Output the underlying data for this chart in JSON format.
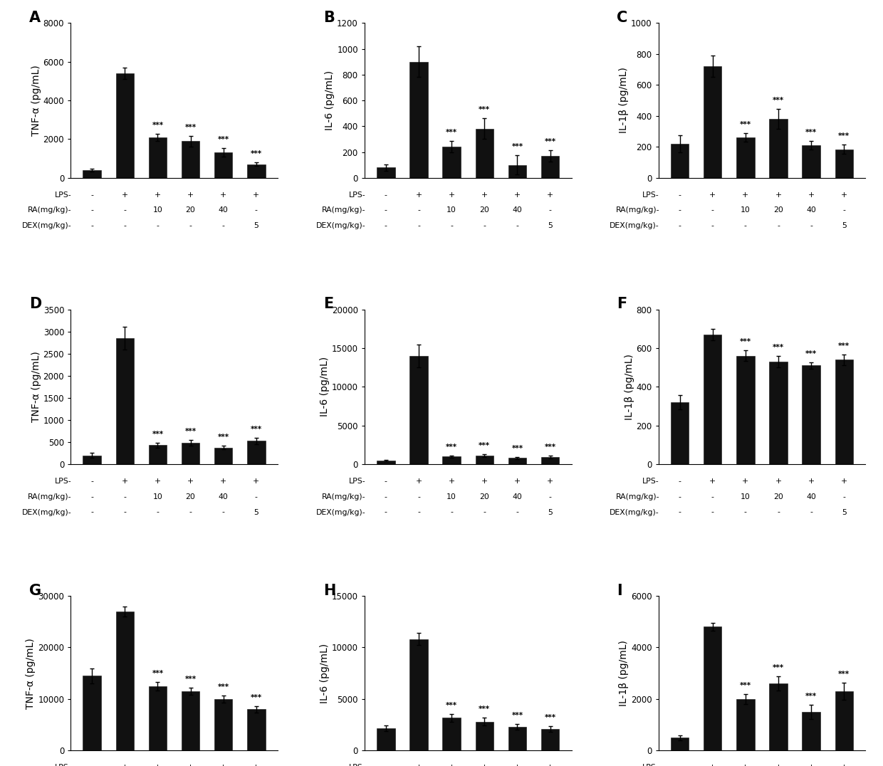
{
  "panels": [
    {
      "label": "A",
      "ylabel": "TNF-α (pg/mL)",
      "ylim": [
        0,
        8000
      ],
      "yticks": [
        0,
        2000,
        4000,
        6000,
        8000
      ],
      "values": [
        400,
        5400,
        2100,
        1900,
        1300,
        700
      ],
      "errors": [
        80,
        280,
        180,
        280,
        220,
        100
      ],
      "sig": [
        false,
        false,
        true,
        true,
        true,
        true
      ]
    },
    {
      "label": "B",
      "ylabel": "IL-6 (pg/mL)",
      "ylim": [
        0,
        1200
      ],
      "yticks": [
        0,
        200,
        400,
        600,
        800,
        1000,
        1200
      ],
      "values": [
        80,
        900,
        240,
        380,
        100,
        170
      ],
      "errors": [
        25,
        120,
        45,
        80,
        75,
        45
      ],
      "sig": [
        false,
        false,
        true,
        true,
        true,
        true
      ]
    },
    {
      "label": "C",
      "ylabel": "IL-1β (pg/mL)",
      "ylim": [
        0,
        1000
      ],
      "yticks": [
        0,
        200,
        400,
        600,
        800,
        1000
      ],
      "values": [
        220,
        720,
        260,
        380,
        210,
        185
      ],
      "errors": [
        55,
        70,
        28,
        65,
        28,
        28
      ],
      "sig": [
        false,
        false,
        true,
        true,
        true,
        true
      ]
    },
    {
      "label": "D",
      "ylabel": "TNF-α (pg/mL)",
      "ylim": [
        0,
        3500
      ],
      "yticks": [
        0,
        500,
        1000,
        1500,
        2000,
        2500,
        3000,
        3500
      ],
      "values": [
        200,
        2850,
        430,
        480,
        380,
        530
      ],
      "errors": [
        55,
        250,
        55,
        65,
        45,
        75
      ],
      "sig": [
        false,
        false,
        true,
        true,
        true,
        true
      ]
    },
    {
      "label": "E",
      "ylabel": "IL-6 (pg/mL)",
      "ylim": [
        0,
        20000
      ],
      "yticks": [
        0,
        5000,
        10000,
        15000,
        20000
      ],
      "values": [
        500,
        14000,
        1000,
        1100,
        800,
        900
      ],
      "errors": [
        90,
        1500,
        140,
        190,
        140,
        190
      ],
      "sig": [
        false,
        false,
        true,
        true,
        true,
        true
      ]
    },
    {
      "label": "F",
      "ylabel": "IL-1β (pg/mL)",
      "ylim": [
        0,
        800
      ],
      "yticks": [
        0,
        200,
        400,
        600,
        800
      ],
      "values": [
        320,
        670,
        560,
        530,
        510,
        540
      ],
      "errors": [
        38,
        28,
        28,
        28,
        18,
        28
      ],
      "sig": [
        false,
        false,
        true,
        true,
        true,
        true
      ]
    },
    {
      "label": "G",
      "ylabel": "TNF-α (pg/mL)",
      "ylim": [
        0,
        30000
      ],
      "yticks": [
        0,
        10000,
        20000,
        30000
      ],
      "values": [
        14500,
        27000,
        12500,
        11500,
        10000,
        8000
      ],
      "errors": [
        1400,
        950,
        780,
        680,
        680,
        580
      ],
      "sig": [
        false,
        false,
        true,
        true,
        true,
        true
      ]
    },
    {
      "label": "H",
      "ylabel": "IL-6 (pg/mL)",
      "ylim": [
        0,
        15000
      ],
      "yticks": [
        0,
        5000,
        10000,
        15000
      ],
      "values": [
        2200,
        10800,
        3200,
        2800,
        2300,
        2100
      ],
      "errors": [
        280,
        580,
        380,
        380,
        280,
        280
      ],
      "sig": [
        false,
        false,
        true,
        true,
        true,
        true
      ]
    },
    {
      "label": "I",
      "ylabel": "IL-1β (pg/mL)",
      "ylim": [
        0,
        6000
      ],
      "yticks": [
        0,
        2000,
        4000,
        6000
      ],
      "values": [
        500,
        4800,
        2000,
        2600,
        1500,
        2300
      ],
      "errors": [
        90,
        140,
        190,
        280,
        280,
        330
      ],
      "sig": [
        false,
        false,
        true,
        true,
        true,
        true
      ]
    }
  ],
  "x_labels_lps": [
    "-",
    "+",
    "+",
    "+",
    "+",
    "+"
  ],
  "x_labels_ra": [
    "-",
    "-",
    "10",
    "20",
    "40",
    "-"
  ],
  "x_labels_dex": [
    "-",
    "-",
    "-",
    "-",
    "-",
    "5"
  ],
  "bar_color": "#111111",
  "sig_marker": "***",
  "sig_fontsize": 7.5,
  "panel_label_fontsize": 15,
  "ylabel_fontsize": 10,
  "tick_fontsize": 8.5,
  "xtick_fontsize": 7.8,
  "prefix_lps": "LPS-",
  "prefix_ra": "RA(mg/kg)-",
  "prefix_dex": "DEX(mg/kg)-"
}
